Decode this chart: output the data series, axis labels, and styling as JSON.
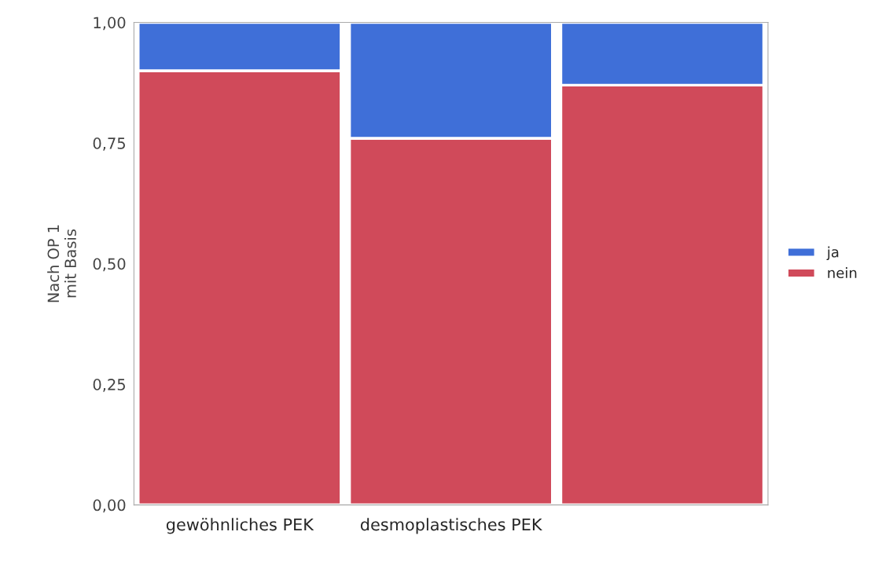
{
  "chart_data": {
    "type": "bar",
    "stacked": true,
    "ylabel": "Nach OP 1\nmit Basis",
    "categories": [
      "gewöhnliches PEK",
      "desmoplastisches PEK",
      null
    ],
    "series": [
      {
        "name": "nein",
        "color": "#d04a5a",
        "values": [
          0.9,
          0.76,
          0.87
        ]
      },
      {
        "name": "ja",
        "color": "#3f6fd8",
        "values": [
          0.1,
          0.24,
          0.13
        ]
      }
    ],
    "ylim": [
      0,
      1
    ],
    "yticks": [
      {
        "value": 0,
        "label": "0,00"
      },
      {
        "value": 0.25,
        "label": "0,25"
      },
      {
        "value": 0.5,
        "label": "0,50"
      },
      {
        "value": 0.75,
        "label": "0,75"
      },
      {
        "value": 1,
        "label": "1,00"
      }
    ],
    "grid": false,
    "legend": "right"
  }
}
